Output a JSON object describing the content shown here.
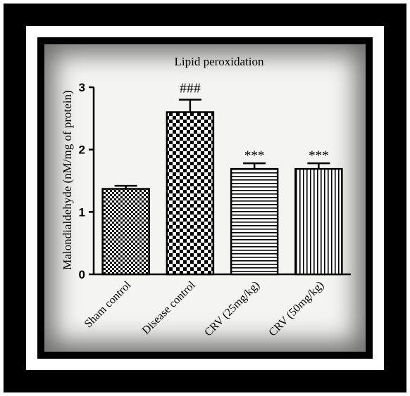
{
  "chart_data": {
    "type": "bar",
    "title": "Lipid peroxidation",
    "xlabel": "",
    "ylabel": "Malondialdehyde (nM/mg of protein)",
    "ylim": [
      0,
      3
    ],
    "yticks": [
      "0",
      "1",
      "2",
      "3"
    ],
    "categories": [
      "Sham control",
      "Disease control",
      "CRV (25mg/kg)",
      "CRV (50mg/kg)"
    ],
    "values": [
      1.37,
      2.6,
      1.69,
      1.69
    ],
    "errors": [
      0.05,
      0.2,
      0.09,
      0.09
    ],
    "annotations": [
      "",
      "###",
      "***",
      "***"
    ],
    "patterns": [
      "checker-small",
      "checker-large",
      "horizontal-lines",
      "vertical-lines"
    ],
    "grid": false,
    "legend": "none"
  }
}
